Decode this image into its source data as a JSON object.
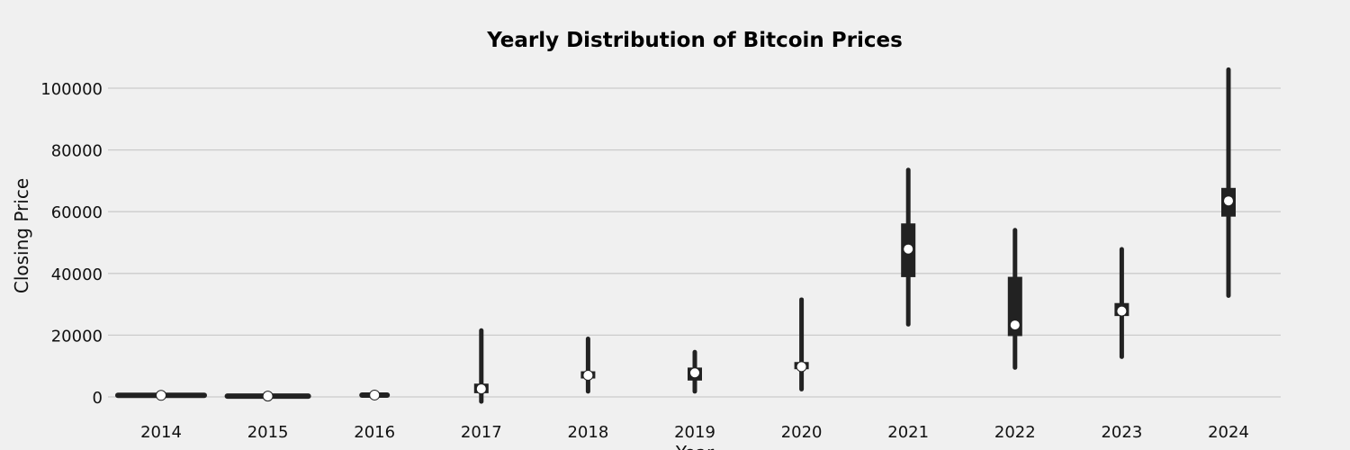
{
  "chart_data": {
    "type": "violin",
    "title": "Yearly Distribution of Bitcoin Prices",
    "xlabel": "Year",
    "ylabel": "Closing Price",
    "ylim": [
      -3000,
      110000
    ],
    "yticks": [
      0,
      20000,
      40000,
      60000,
      80000,
      100000
    ],
    "grid": "horizontal",
    "categories": [
      "2014",
      "2015",
      "2016",
      "2017",
      "2018",
      "2019",
      "2020",
      "2021",
      "2022",
      "2023",
      "2024"
    ],
    "stats": [
      {
        "year": "2014",
        "min": 300,
        "q1": 300,
        "median": 500,
        "q3": 600,
        "max": 700
      },
      {
        "year": "2015",
        "min": 200,
        "q1": 250,
        "median": 250,
        "q3": 350,
        "max": 450
      },
      {
        "year": "2016",
        "min": 350,
        "q1": 450,
        "median": 600,
        "q3": 700,
        "max": 950
      },
      {
        "year": "2017",
        "min": -1500,
        "q1": 1200,
        "median": 2600,
        "q3": 4300,
        "max": 21500
      },
      {
        "year": "2018",
        "min": 1800,
        "q1": 6400,
        "median": 7000,
        "q3": 8300,
        "max": 18800
      },
      {
        "year": "2019",
        "min": 1800,
        "q1": 5300,
        "median": 7800,
        "q3": 9500,
        "max": 14500
      },
      {
        "year": "2020",
        "min": 2500,
        "q1": 9200,
        "median": 9800,
        "q3": 11300,
        "max": 31500
      },
      {
        "year": "2021",
        "min": 23500,
        "q1": 38800,
        "median": 47900,
        "q3": 56200,
        "max": 73500
      },
      {
        "year": "2022",
        "min": 9500,
        "q1": 19700,
        "median": 23300,
        "q3": 38900,
        "max": 54000
      },
      {
        "year": "2023",
        "min": 13000,
        "q1": 26200,
        "median": 27800,
        "q3": 30400,
        "max": 47800
      },
      {
        "year": "2024",
        "min": 32800,
        "q1": 58400,
        "median": 63500,
        "q3": 67700,
        "max": 106000
      }
    ],
    "colors": {
      "box": "#222222",
      "median": "#ffffff",
      "background": "#f0f0f0",
      "grid": "#cbcbcb"
    }
  }
}
